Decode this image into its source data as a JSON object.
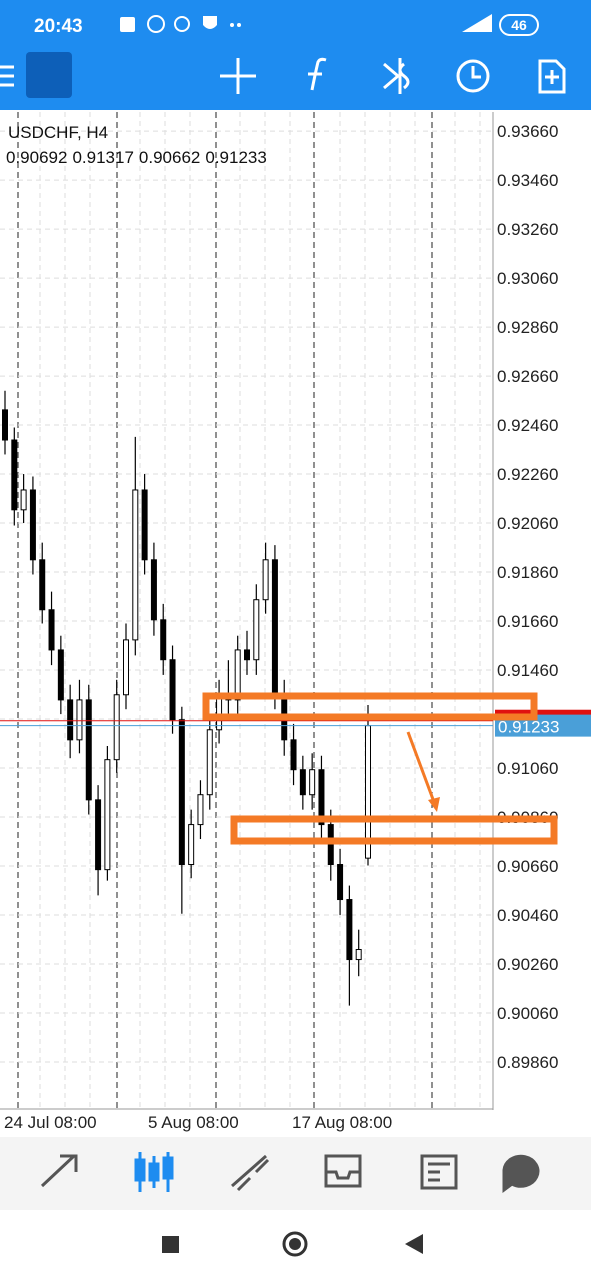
{
  "status_bar": {
    "time": "20:43",
    "battery": "46"
  },
  "chart_data": {
    "type": "candlestick",
    "title": "USDCHF, H4",
    "open": [
      0.92522,
      0.92399,
      0.92114,
      0.92195,
      0.9191,
      0.91706,
      0.91542,
      0.91338,
      0.91175,
      0.91338,
      0.9093,
      0.90645,
      0.91094,
      0.91359,
      0.91583,
      0.92195,
      0.9191,
      0.91665,
      0.91502,
      0.91257,
      0.90666,
      0.90829,
      0.90951,
      0.91216,
      0.91359,
      0.91338,
      0.91542,
      0.91502,
      0.91747,
      0.9191,
      0.91359,
      0.91175,
      0.91053,
      0.90951,
      0.91053,
      0.90829,
      0.90666,
      0.90523,
      0.90278,
      0.90692
    ],
    "high": [
      0.926,
      0.9245,
      0.9226,
      0.9225,
      0.9198,
      0.9178,
      0.916,
      0.914,
      0.9142,
      0.914,
      0.9099,
      0.9115,
      0.9142,
      0.9165,
      0.92412,
      0.9226,
      0.9198,
      0.9173,
      0.9156,
      0.9131,
      0.9089,
      0.9101,
      0.9128,
      0.9142,
      0.915,
      0.916,
      0.9162,
      0.9181,
      0.9198,
      0.9197,
      0.9142,
      0.9124,
      0.9111,
      0.9112,
      0.9111,
      0.9089,
      0.9073,
      0.9058,
      0.904,
      0.91317
    ],
    "low": [
      0.9234,
      0.9205,
      0.9206,
      0.9185,
      0.9165,
      0.9148,
      0.9128,
      0.911,
      0.9112,
      0.9087,
      0.9054,
      0.906,
      0.9104,
      0.913,
      0.9152,
      0.9185,
      0.916,
      0.9144,
      0.912,
      0.90465,
      0.9061,
      0.9077,
      0.9089,
      0.9116,
      0.9128,
      0.9128,
      0.9144,
      0.9144,
      0.9169,
      0.913,
      0.9111,
      0.9099,
      0.9089,
      0.9089,
      0.9077,
      0.906,
      0.9046,
      0.9009,
      0.9021,
      0.90662
    ],
    "close": [
      0.92399,
      0.92114,
      0.92195,
      0.9191,
      0.91706,
      0.91542,
      0.91338,
      0.91175,
      0.91338,
      0.9093,
      0.90645,
      0.91094,
      0.91359,
      0.91583,
      0.92195,
      0.9191,
      0.91665,
      0.91502,
      0.91257,
      0.90666,
      0.90829,
      0.90951,
      0.91216,
      0.91359,
      0.91338,
      0.91542,
      0.91502,
      0.91747,
      0.9191,
      0.91359,
      0.91175,
      0.91053,
      0.90951,
      0.91053,
      0.90829,
      0.90666,
      0.90523,
      0.90278,
      0.90319,
      0.91233
    ],
    "ask": 0.91253,
    "x_labels": [
      "24 Jul 08:00",
      "5 Aug 08:00",
      "17 Aug 08:00"
    ],
    "ylim": [
      0.89672,
      0.93738
    ],
    "yticks": [
      {
        "value": 0.9366,
        "label": "0.93660"
      },
      {
        "value": 0.9346,
        "label": "0.93460"
      },
      {
        "value": 0.9326,
        "label": "0.93260"
      },
      {
        "value": 0.9306,
        "label": "0.93060"
      },
      {
        "value": 0.9286,
        "label": "0.92860"
      },
      {
        "value": 0.9266,
        "label": "0.92660"
      },
      {
        "value": 0.9246,
        "label": "0.92460"
      },
      {
        "value": 0.9226,
        "label": "0.92260"
      },
      {
        "value": 0.9206,
        "label": "0.92060"
      },
      {
        "value": 0.9186,
        "label": "0.91860"
      },
      {
        "value": 0.9166,
        "label": "0.91660"
      },
      {
        "value": 0.9146,
        "label": "0.91460"
      },
      {
        "value": 0.9126,
        "label": "0.91260"
      },
      {
        "value": 0.9106,
        "label": "0.91060"
      },
      {
        "value": 0.9086,
        "label": "0.90860"
      },
      {
        "value": 0.9066,
        "label": "0.90660"
      },
      {
        "value": 0.9046,
        "label": "0.90460"
      },
      {
        "value": 0.9026,
        "label": "0.90260"
      },
      {
        "value": 0.9006,
        "label": "0.90060"
      },
      {
        "value": 0.8986,
        "label": "0.89860"
      }
    ],
    "grid": true,
    "bull_color": "#ffffff",
    "bear_color": "#000000",
    "bid_color": "#4a9fd8",
    "ask_color": "#e01010"
  }
}
